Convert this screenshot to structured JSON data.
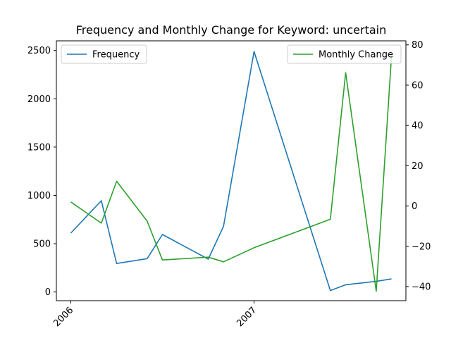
{
  "chart_data": {
    "type": "line",
    "title": "Frequency and Monthly Change for Keyword: uncertain",
    "x": [
      "2006-01",
      "2006-03",
      "2006-04",
      "2006-06",
      "2006-07",
      "2006-10",
      "2006-11",
      "2007-01",
      "2007-06",
      "2007-07",
      "2007-09",
      "2007-10"
    ],
    "x_ticks": [
      {
        "label": "2006",
        "date": "2006-01"
      },
      {
        "label": "2007",
        "date": "2007-01"
      }
    ],
    "series": [
      {
        "name": "Frequency",
        "axis": "left",
        "color": "#1f77b4",
        "values": [
          610,
          945,
          295,
          345,
          595,
          340,
          680,
          2490,
          15,
          75,
          110,
          135
        ]
      },
      {
        "name": "Monthly Change",
        "axis": "right",
        "color": "#2ca02c",
        "values": [
          2,
          -8.5,
          12.3,
          -7.5,
          -26.8,
          -25.4,
          -27.7,
          -20.7,
          -6.6,
          66.2,
          -42.3,
          74
        ]
      }
    ],
    "y_left": {
      "lim": [
        -90,
        2600
      ],
      "ticks": [
        0,
        500,
        1000,
        1500,
        2000,
        2500
      ]
    },
    "y_right": {
      "lim": [
        -47,
        82
      ],
      "ticks": [
        -40,
        -20,
        0,
        20,
        40,
        60,
        80
      ]
    },
    "legends": [
      {
        "series": "Frequency",
        "placement": "upper left"
      },
      {
        "series": "Monthly Change",
        "placement": "upper right"
      }
    ],
    "grid": false
  }
}
